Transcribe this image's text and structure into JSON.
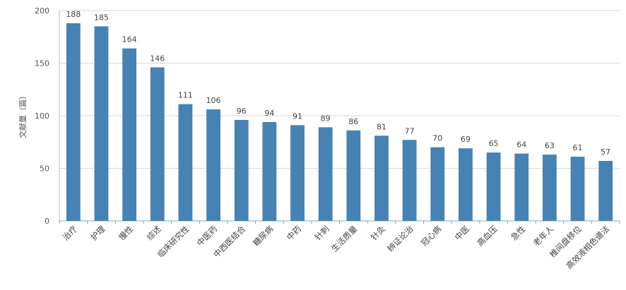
{
  "chart_data": {
    "type": "bar",
    "ylabel": "文献量（篇）",
    "ylim": [
      0,
      200
    ],
    "yticks": [
      0,
      50,
      100,
      150,
      200
    ],
    "grid": true,
    "bar_color": "#4682b4",
    "categories": [
      "治疗",
      "护理",
      "慢性",
      "综述",
      "临床研究性",
      "中医药",
      "中西医结合",
      "糖尿病",
      "中药",
      "针刺",
      "生活质量",
      "针灸",
      "辨证论治",
      "冠心病",
      "中医",
      "高血压",
      "急性",
      "老年人",
      "椎间盘移位",
      "高效液相色谱法"
    ],
    "values": [
      188,
      185,
      164,
      146,
      111,
      106,
      96,
      94,
      91,
      89,
      86,
      81,
      77,
      70,
      69,
      65,
      64,
      63,
      61,
      57
    ]
  }
}
